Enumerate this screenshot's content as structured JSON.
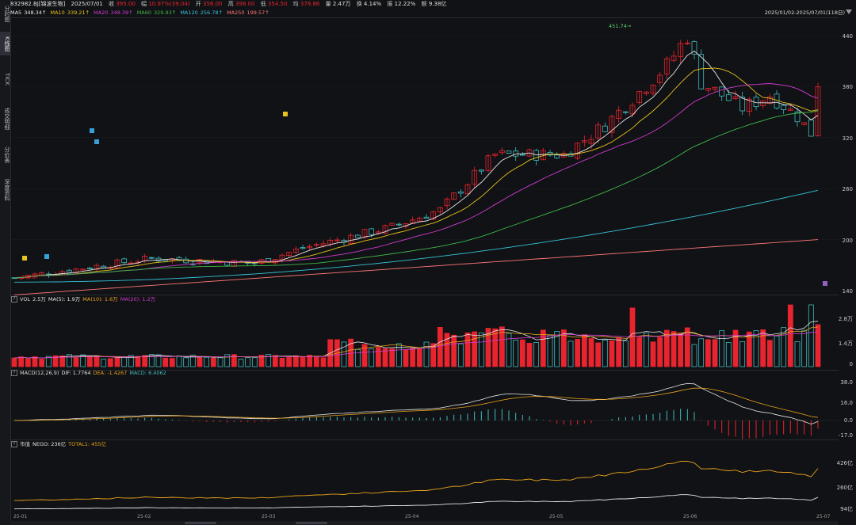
{
  "sidebar": {
    "tabs": [
      {
        "label": "分时图",
        "active": false
      },
      {
        "label": "K线图",
        "active": true
      },
      {
        "label": "TICK",
        "active": false
      },
      {
        "label": "成交明细",
        "active": false
      },
      {
        "label": "分价表",
        "active": false
      },
      {
        "label": "深度资料",
        "active": false
      }
    ]
  },
  "header": {
    "code": "832982.BJ[锦波生物]",
    "date": "2025/07/01",
    "close_label": "收",
    "close": "395.00",
    "change_label": "幅",
    "change": "10.97%(39.04)",
    "open_label": "开",
    "open": "356.00",
    "high_label": "高",
    "high": "398.00",
    "low_label": "低",
    "low": "354.50",
    "avg_label": "均",
    "avg": "379.86",
    "vol_label": "量",
    "vol": "2.47万",
    "turnover_label": "换",
    "turnover": "4.14%",
    "amplitude_label": "振",
    "amplitude": "12.22%",
    "amount_label": "额",
    "amount": "9.38亿"
  },
  "ma_bar": {
    "items": [
      {
        "label": "MA5",
        "value": "348.34↑",
        "color": "#e6e6e6"
      },
      {
        "label": "MA10",
        "value": "339.21↑",
        "color": "#e8c21c"
      },
      {
        "label": "MA20",
        "value": "348.39↑",
        "color": "#d03bd0"
      },
      {
        "label": "MA60",
        "value": "329.93↑",
        "color": "#3fb84a"
      },
      {
        "label": "MA120",
        "value": "256.78↑",
        "color": "#35c3d8"
      },
      {
        "label": "MA250",
        "value": "199.57↑",
        "color": "#ff7777"
      }
    ],
    "range": "2025/01/02-2025/07/01(118日)"
  },
  "vol_header": {
    "title": "VOL",
    "value": "2.5万",
    "ma5": "MA(5): 1.9万",
    "ma10": "MA(10): 1.6万",
    "ma20": "MA(20): 1.2万"
  },
  "macd_header": {
    "title": "MACD(12,26,9)",
    "dif": "DIF: 1.7764",
    "dea": "DEA: -1.4267",
    "macd": "MACD: 6.4062"
  },
  "mv_header": {
    "title": "市值",
    "nego": "NEGO: 236亿",
    "total": "TOTAL1: 455亿"
  },
  "price_axis": [
    "440",
    "380",
    "320",
    "260",
    "200",
    "140"
  ],
  "vol_axis": [
    "2.8万",
    "1.4万",
    "0"
  ],
  "macd_axis": [
    "38.0",
    "16.0",
    "0.0",
    "-17.0"
  ],
  "mv_axis": [
    "426亿",
    "260亿",
    "94亿"
  ],
  "x_axis": [
    "25-01",
    "25-02",
    "25-03",
    "25-04",
    "25-05",
    "25-06",
    "25-07"
  ],
  "annotations": {
    "peak": "451.74→",
    "low": "154.87",
    "markers": [
      "M",
      "M",
      "M",
      "M",
      "M",
      "F"
    ]
  },
  "colors": {
    "up": "#e8242e",
    "down": "#3fbcc0",
    "background": "#111215"
  }
}
